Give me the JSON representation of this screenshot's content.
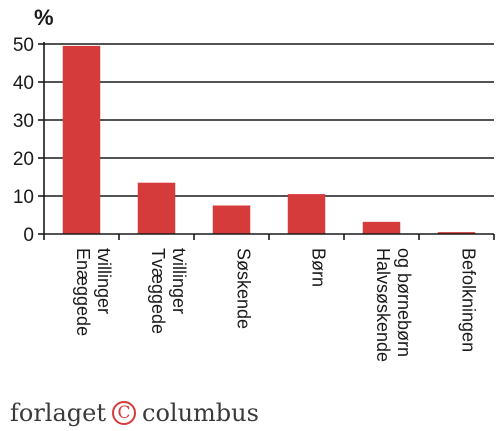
{
  "chart_data": {
    "type": "bar",
    "unit_label": "%",
    "categories": [
      [
        "Enæggede",
        "tvillinger"
      ],
      [
        "Tvæggede",
        "tvillinger"
      ],
      [
        "Søskende"
      ],
      [
        "Børn"
      ],
      [
        "Halvsøskende",
        "og børnebørn"
      ],
      [
        "Befolkningen"
      ]
    ],
    "values": [
      49.5,
      13.5,
      7.5,
      10.5,
      3.2,
      0.5
    ],
    "ylim": [
      0,
      50
    ],
    "yticks": [
      0,
      10,
      20,
      30,
      40,
      50
    ],
    "grid": true,
    "bar_color": "#d53b3b"
  },
  "publisher": {
    "name_left": "forlaget",
    "symbol": "C",
    "name_right": "columbus",
    "symbol_color": "#d53b3b"
  }
}
